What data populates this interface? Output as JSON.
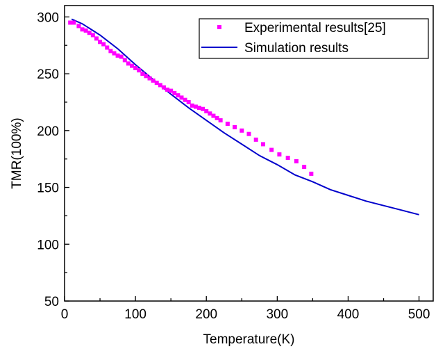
{
  "chart_data": {
    "type": "scatter",
    "xlabel": "Temperature(K)",
    "ylabel": "TMR(100%)",
    "xlim": [
      0,
      520
    ],
    "ylim": [
      50,
      310
    ],
    "x_ticks": [
      0,
      100,
      200,
      300,
      400,
      500
    ],
    "y_ticks": [
      50,
      100,
      150,
      200,
      250,
      300
    ],
    "grid": false,
    "legend_position": "top-right",
    "series": [
      {
        "name": "Experimental results[25]",
        "kind": "scatter",
        "color": "#ff00ff",
        "marker": "square",
        "x": [
          8,
          13,
          20,
          25,
          30,
          35,
          40,
          45,
          50,
          55,
          60,
          65,
          70,
          75,
          80,
          85,
          90,
          95,
          100,
          105,
          110,
          115,
          120,
          125,
          130,
          135,
          140,
          145,
          150,
          155,
          160,
          165,
          170,
          175,
          180,
          185,
          190,
          195,
          200,
          205,
          210,
          215,
          220,
          230,
          240,
          250,
          260,
          270,
          280,
          292,
          303,
          315,
          327,
          338,
          348
        ],
        "y": [
          295,
          295,
          292,
          289,
          288,
          286,
          284,
          281,
          278,
          276,
          273,
          270,
          268,
          266,
          265,
          262,
          259,
          257,
          255,
          253,
          250,
          248,
          246,
          244,
          242,
          240,
          238,
          236,
          235,
          233,
          231,
          229,
          227,
          225,
          222,
          221,
          220,
          219,
          217,
          215,
          213,
          211,
          209,
          206,
          203,
          200,
          197,
          192,
          188,
          183,
          179,
          176,
          173,
          168,
          162
        ]
      },
      {
        "name": "Simulation results",
        "kind": "line",
        "color": "#0000cc",
        "x": [
          10,
          25,
          50,
          75,
          100,
          125,
          150,
          175,
          200,
          225,
          250,
          275,
          300,
          325,
          350,
          375,
          400,
          425,
          450,
          475,
          500
        ],
        "y": [
          298,
          294,
          284,
          272,
          258,
          245,
          232,
          220,
          209,
          198,
          188,
          178,
          170,
          161,
          155,
          148,
          143,
          138,
          134,
          130,
          126
        ]
      }
    ]
  }
}
